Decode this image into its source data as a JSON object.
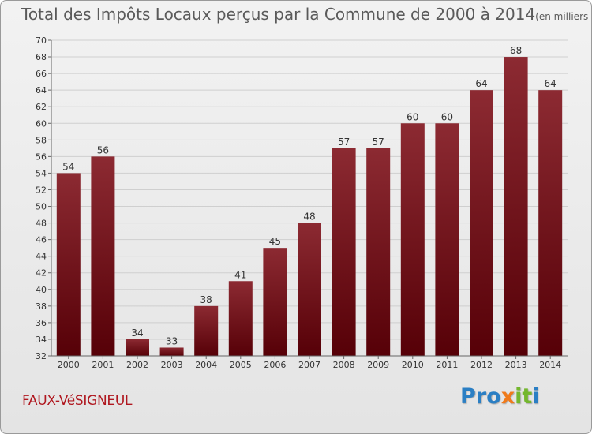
{
  "header": {
    "title": "Total des Impôts Locaux perçus par la Commune de 2000 à 2014",
    "unit": "(en milliers d'€)"
  },
  "commune": "FAUX-VéSIGNEUL",
  "logo": {
    "letters": [
      "P",
      "r",
      "o",
      "x",
      "i",
      "t",
      "i"
    ],
    "colors": [
      "#2b7fc4",
      "#2b7fc4",
      "#2b7fc4",
      "#f07a1a",
      "#74b72e",
      "#74b72e",
      "#2b7fc4"
    ]
  },
  "chart_data": {
    "type": "bar",
    "title": "Total des Impôts Locaux perçus par la Commune de 2000 à 2014",
    "xlabel": "",
    "ylabel": "",
    "categories": [
      "2000",
      "2001",
      "2002",
      "2003",
      "2004",
      "2005",
      "2006",
      "2007",
      "2008",
      "2009",
      "2010",
      "2011",
      "2012",
      "2013",
      "2014"
    ],
    "values": [
      54,
      56,
      34,
      33,
      38,
      41,
      45,
      48,
      57,
      57,
      60,
      60,
      64,
      68,
      64
    ],
    "ylim": [
      32,
      70
    ],
    "yticks": [
      32,
      34,
      36,
      38,
      40,
      42,
      44,
      46,
      48,
      50,
      52,
      54,
      56,
      58,
      60,
      62,
      64,
      66,
      68,
      70
    ],
    "grid": true,
    "bar_color": "#7b1a22",
    "legend": "none"
  }
}
